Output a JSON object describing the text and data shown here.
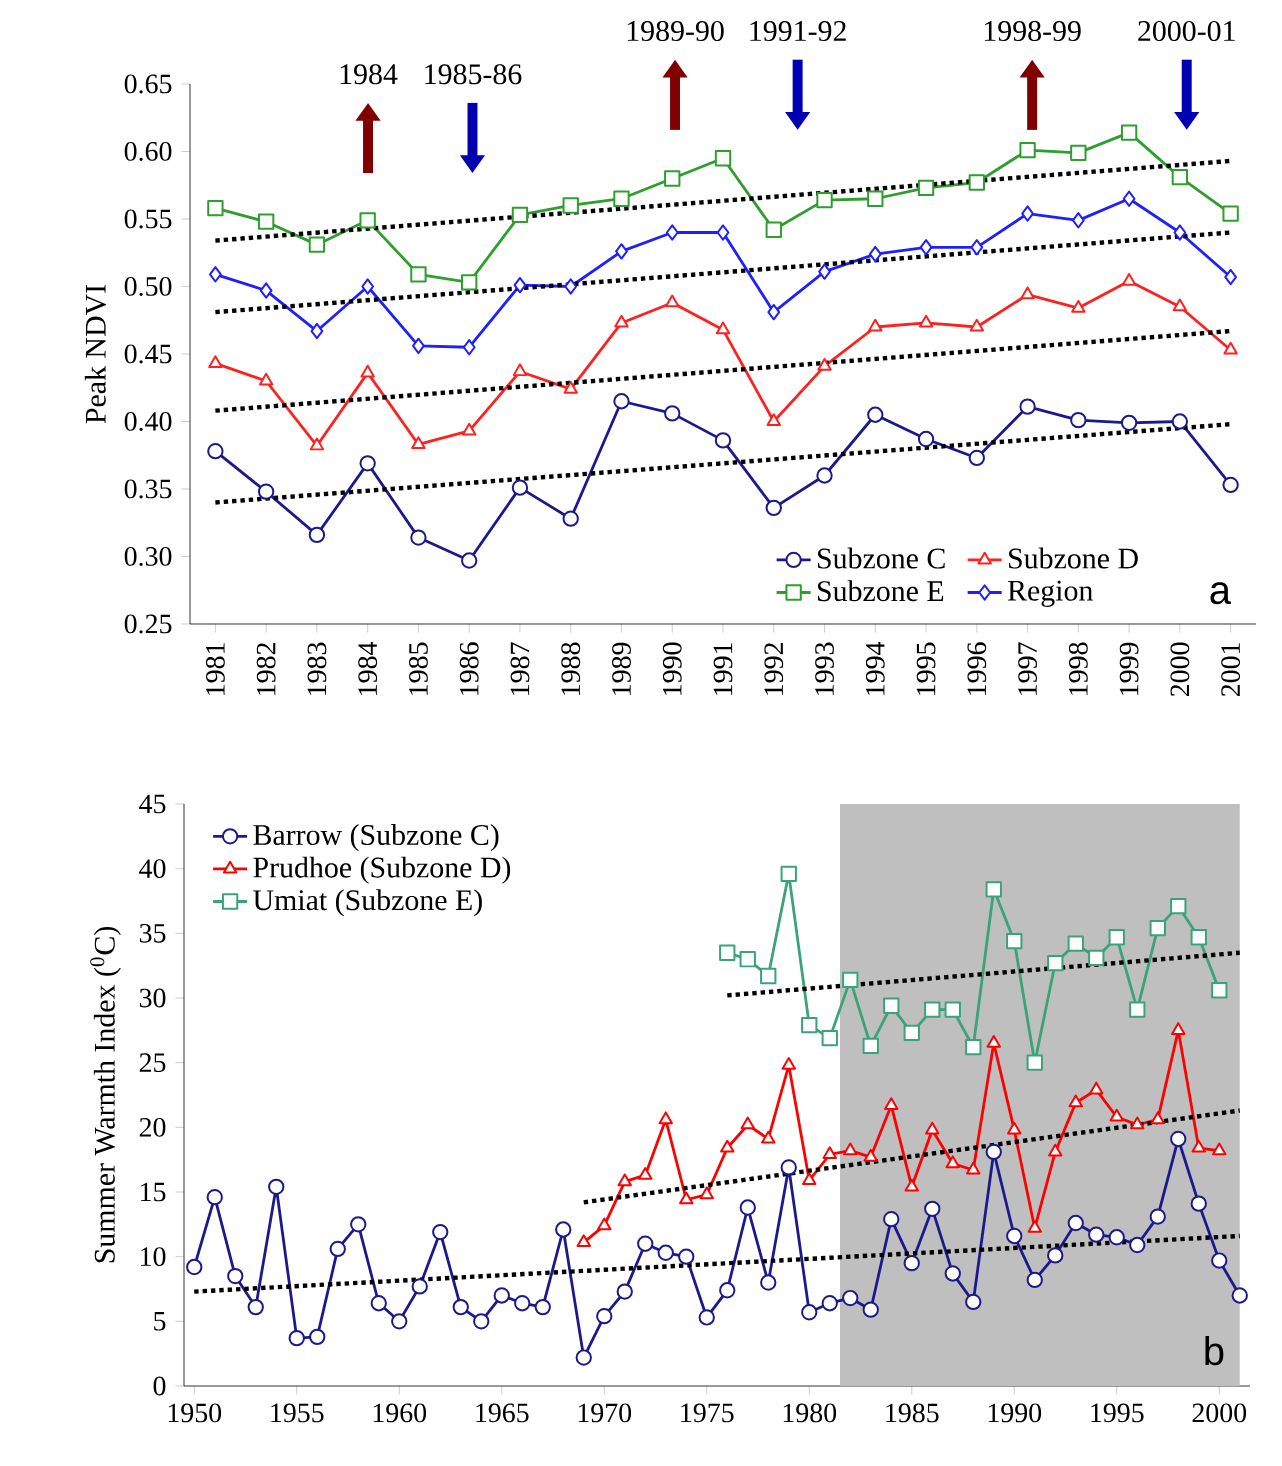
{
  "chart_data": [
    {
      "type": "line",
      "ylabel": "Peak NDVI",
      "xlim": [
        1980.5,
        2001.5
      ],
      "xticks": [
        1981,
        1982,
        1983,
        1984,
        1985,
        1986,
        1987,
        1988,
        1989,
        1990,
        1991,
        1992,
        1993,
        1994,
        1995,
        1996,
        1997,
        1998,
        1999,
        2000,
        2001
      ],
      "ylim": [
        0.25,
        0.65
      ],
      "yticks": [
        {
          "value": 0.25,
          "label": "0.25"
        },
        {
          "value": 0.3,
          "label": "0.30"
        },
        {
          "value": 0.35,
          "label": "0.35"
        },
        {
          "value": 0.4,
          "label": "0.40"
        },
        {
          "value": 0.45,
          "label": "0.45"
        },
        {
          "value": 0.5,
          "label": "0.50"
        },
        {
          "value": 0.55,
          "label": "0.55"
        },
        {
          "value": 0.6,
          "label": "0.60"
        },
        {
          "value": 0.65,
          "label": "0.65"
        }
      ],
      "legend": "bottom right",
      "series": [
        {
          "name": "Subzone C",
          "color": "#1a1a8c",
          "marker": "circle",
          "line_style": "solid",
          "x": [
            1981,
            1982,
            1983,
            1984,
            1985,
            1986,
            1987,
            1988,
            1989,
            1990,
            1991,
            1992,
            1993,
            1994,
            1995,
            1996,
            1997,
            1998,
            1999,
            2000,
            2001
          ],
          "values": [
            0.378,
            0.348,
            0.316,
            0.369,
            0.314,
            0.297,
            0.351,
            0.328,
            0.415,
            0.406,
            0.386,
            0.336,
            0.36,
            0.405,
            0.387,
            0.373,
            0.411,
            0.401,
            0.399,
            0.4,
            0.353
          ]
        },
        {
          "name": "Subzone D",
          "color": "#ff2020",
          "marker": "triangle",
          "line_style": "solid",
          "x": [
            1981,
            1982,
            1983,
            1984,
            1985,
            1986,
            1987,
            1988,
            1989,
            1990,
            1991,
            1992,
            1993,
            1994,
            1995,
            1996,
            1997,
            1998,
            1999,
            2000,
            2001
          ],
          "values": [
            0.443,
            0.43,
            0.382,
            0.436,
            0.383,
            0.393,
            0.437,
            0.424,
            0.473,
            0.488,
            0.468,
            0.4,
            0.441,
            0.47,
            0.473,
            0.47,
            0.494,
            0.484,
            0.504,
            0.485,
            0.453
          ]
        },
        {
          "name": "Subzone E",
          "color": "#2e9e2e",
          "marker": "square",
          "line_style": "solid",
          "x": [
            1981,
            1982,
            1983,
            1984,
            1985,
            1986,
            1987,
            1988,
            1989,
            1990,
            1991,
            1992,
            1993,
            1994,
            1995,
            1996,
            1997,
            1998,
            1999,
            2000,
            2001
          ],
          "values": [
            0.558,
            0.548,
            0.531,
            0.549,
            0.509,
            0.503,
            0.553,
            0.56,
            0.565,
            0.58,
            0.595,
            0.542,
            0.564,
            0.565,
            0.573,
            0.577,
            0.601,
            0.599,
            0.614,
            0.581,
            0.554
          ]
        },
        {
          "name": "Region",
          "color": "#1f1fff",
          "marker": "diamond",
          "line_style": "solid",
          "x": [
            1981,
            1982,
            1983,
            1984,
            1985,
            1986,
            1987,
            1988,
            1989,
            1990,
            1991,
            1992,
            1993,
            1994,
            1995,
            1996,
            1997,
            1998,
            1999,
            2000,
            2001
          ],
          "values": [
            0.509,
            0.497,
            0.467,
            0.5,
            0.456,
            0.455,
            0.501,
            0.5,
            0.526,
            0.54,
            0.54,
            0.481,
            0.511,
            0.524,
            0.529,
            0.529,
            0.554,
            0.549,
            0.565,
            0.54,
            0.507
          ]
        },
        {
          "type": "line",
          "color": "#000000",
          "marker": "none",
          "line_style": "dotted",
          "x": [
            1981,
            2001
          ],
          "values": [
            0.34,
            0.398
          ]
        },
        {
          "type": "line",
          "color": "#000000",
          "marker": "none",
          "line_style": "dotted",
          "x": [
            1981,
            2001
          ],
          "values": [
            0.408,
            0.467
          ]
        },
        {
          "type": "line",
          "color": "#000000",
          "marker": "none",
          "line_style": "dotted",
          "x": [
            1981,
            2001
          ],
          "values": [
            0.534,
            0.593
          ]
        },
        {
          "type": "line",
          "color": "#000000",
          "marker": "none",
          "line_style": "dotted",
          "x": [
            1981,
            2001
          ],
          "values": [
            0.481,
            0.54
          ]
        }
      ],
      "annotations": [
        "1984",
        "1985-86",
        "1989-90",
        "1991-92",
        "1998-99",
        "2000-01",
        "a"
      ]
    },
    {
      "type": "line",
      "ylabel": "Summer Warmth Index ($^{0}$C)",
      "xlim": [
        1949.5,
        2001.5
      ],
      "xticks": [
        1950,
        1955,
        1960,
        1965,
        1970,
        1975,
        1980,
        1985,
        1990,
        1995,
        2000
      ],
      "ylim": [
        0,
        45
      ],
      "yticks": [
        0,
        5,
        10,
        15,
        20,
        25,
        30,
        35,
        40,
        45
      ],
      "legend": "top left",
      "bands": [
        {
          "axis": "x",
          "from": 1981.5,
          "to": 2001,
          "color": "#bfbfbf"
        }
      ],
      "series": [
        {
          "name": "Barrow (Subzone C)",
          "color": "#1a1a8c",
          "marker": "circle",
          "line_style": "solid",
          "x": [
            1950,
            1951,
            1952,
            1953,
            1954,
            1955,
            1956,
            1957,
            1958,
            1959,
            1960,
            1961,
            1962,
            1963,
            1964,
            1965,
            1966,
            1967,
            1968,
            1969,
            1970,
            1971,
            1972,
            1973,
            1974,
            1975,
            1976,
            1977,
            1978,
            1979,
            1980,
            1981,
            1982,
            1983,
            1984,
            1985,
            1986,
            1987,
            1988,
            1989,
            1990,
            1991,
            1992,
            1993,
            1994,
            1995,
            1996,
            1997,
            1998,
            1999,
            2000,
            2001
          ],
          "values": [
            9.2,
            14.6,
            8.5,
            6.1,
            15.4,
            3.7,
            3.8,
            10.6,
            12.5,
            6.4,
            5.0,
            7.7,
            11.9,
            6.1,
            5.0,
            7.0,
            6.4,
            6.1,
            12.1,
            2.2,
            5.4,
            7.3,
            11.0,
            10.3,
            10.0,
            5.3,
            7.4,
            13.8,
            8.0,
            16.9,
            5.7,
            6.4,
            6.8,
            5.9,
            12.9,
            9.5,
            13.7,
            8.7,
            6.5,
            18.1,
            11.6,
            8.2,
            10.1,
            12.6,
            11.7,
            11.5,
            10.9,
            13.1,
            19.1,
            14.1,
            9.7,
            7.0
          ]
        },
        {
          "name": "Prudhoe (Subzone D)",
          "color": "#ff0000",
          "marker": "triangle",
          "line_style": "solid",
          "x": [
            1969,
            1970,
            1971,
            1972,
            1973,
            1974,
            1975,
            1976,
            1977,
            1978,
            1979,
            1980,
            1981,
            1982,
            1983,
            1984,
            1985,
            1986,
            1987,
            1988,
            1989,
            1990,
            1991,
            1992,
            1993,
            1994,
            1995,
            1996,
            1997,
            1998,
            1999,
            2000
          ],
          "values": [
            11.1,
            12.4,
            15.8,
            16.3,
            20.6,
            14.4,
            14.8,
            18.4,
            20.2,
            19.1,
            24.8,
            15.9,
            17.9,
            18.2,
            17.7,
            21.7,
            15.4,
            19.8,
            17.2,
            16.7,
            26.5,
            19.8,
            12.2,
            18.1,
            21.9,
            22.9,
            20.8,
            20.2,
            20.6,
            27.5,
            18.4,
            18.2
          ]
        },
        {
          "name": "Umiat (Subzone E)",
          "color": "#3aa37a",
          "marker": "square",
          "line_style": "solid",
          "x": [
            1976,
            1977,
            1978,
            1979,
            1980,
            1981,
            1982,
            1983,
            1984,
            1985,
            1986,
            1987,
            1988,
            1989,
            1990,
            1991,
            1992,
            1993,
            1994,
            1995,
            1996,
            1997,
            1998,
            1999,
            2000
          ],
          "values": [
            33.5,
            33.0,
            31.7,
            39.6,
            27.9,
            26.9,
            31.4,
            26.3,
            29.4,
            27.3,
            29.1,
            29.1,
            26.2,
            38.4,
            34.4,
            25.0,
            32.7,
            34.2,
            33.1,
            34.7,
            29.1,
            35.4,
            37.1,
            34.7,
            30.6
          ]
        },
        {
          "type": "line",
          "color": "#000000",
          "marker": "none",
          "line_style": "dotted",
          "x": [
            1950,
            2001
          ],
          "values": [
            7.3,
            11.6
          ]
        },
        {
          "type": "line",
          "color": "#000000",
          "marker": "none",
          "line_style": "dotted",
          "x": [
            1969,
            2001
          ],
          "values": [
            14.2,
            21.3
          ]
        },
        {
          "type": "line",
          "color": "#000000",
          "marker": "none",
          "line_style": "dotted",
          "x": [
            1976,
            2001
          ],
          "values": [
            30.2,
            33.5
          ]
        }
      ],
      "annotations": [
        "b"
      ]
    }
  ]
}
